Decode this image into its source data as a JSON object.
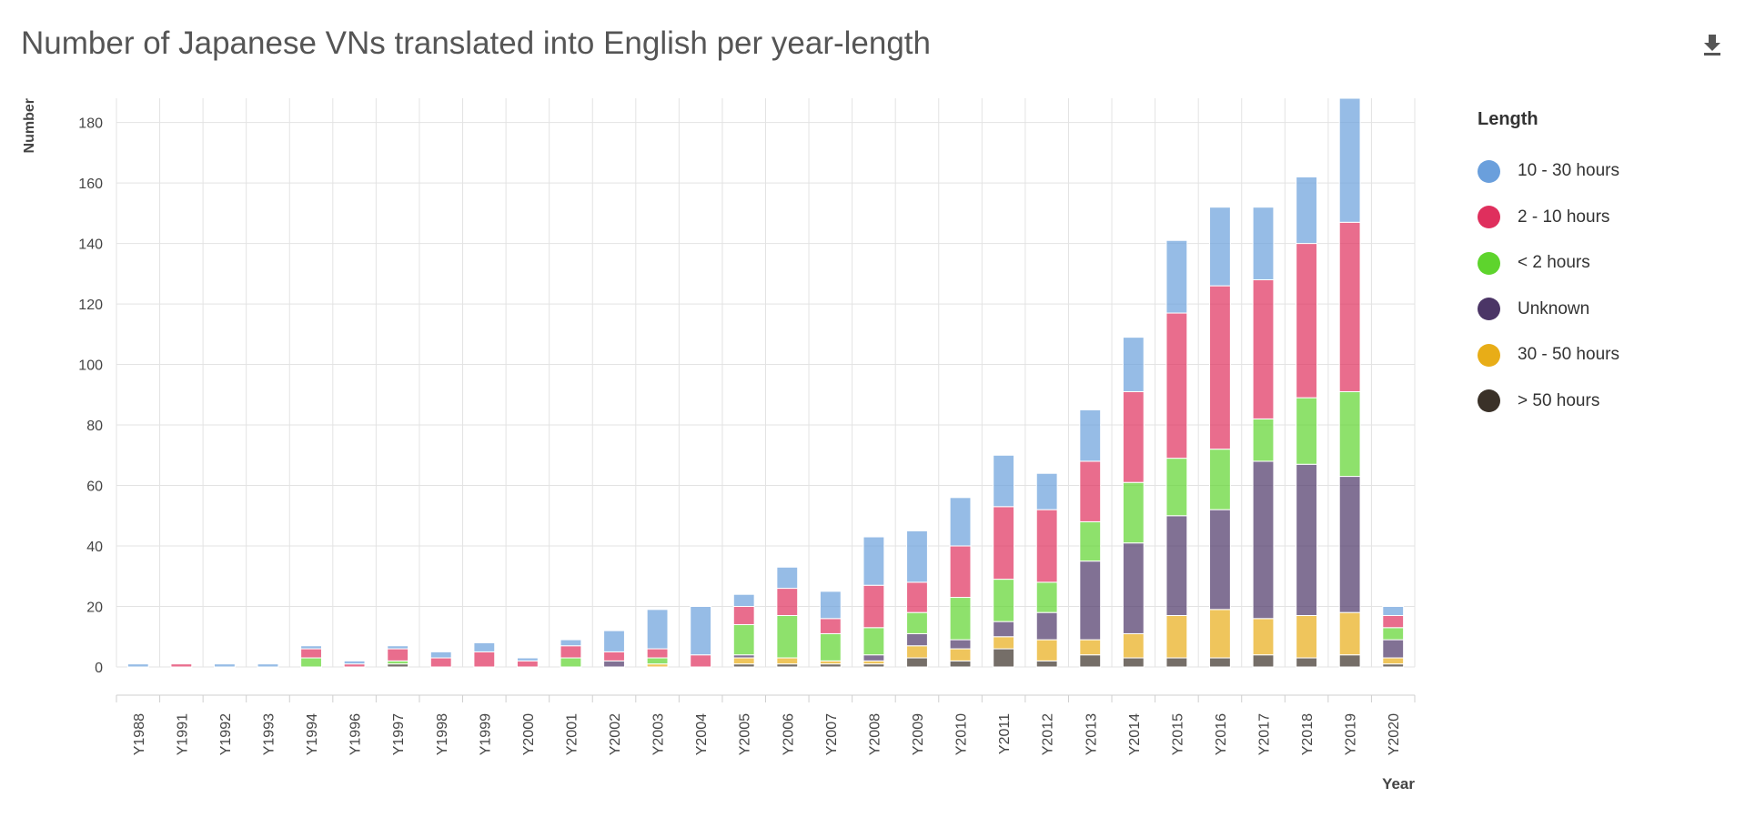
{
  "title": "Number of Japanese VNs translated into English per year-length",
  "download_icon": "download-icon",
  "legend": {
    "title": "Length",
    "items": [
      {
        "label": "10 - 30 hours",
        "color": "#6a9fdc"
      },
      {
        "label": "2 - 10 hours",
        "color": "#df2f5d"
      },
      {
        "label": "< 2 hours",
        "color": "#5ed42d"
      },
      {
        "label": "Unknown",
        "color": "#4b3566"
      },
      {
        "label": "30 - 50 hours",
        "color": "#e8ad17"
      },
      {
        "label": "> 50 hours",
        "color": "#3a3128"
      }
    ]
  },
  "chart_data": {
    "type": "bar",
    "stacked": true,
    "xlabel": "Year",
    "ylabel": "Number",
    "ylim": [
      0,
      188
    ],
    "yticks": [
      0,
      20,
      40,
      60,
      80,
      100,
      120,
      140,
      160,
      180
    ],
    "grid": true,
    "legend_position": "right",
    "categories": [
      "Y1988",
      "Y1991",
      "Y1992",
      "Y1993",
      "Y1994",
      "Y1996",
      "Y1997",
      "Y1998",
      "Y1999",
      "Y2000",
      "Y2001",
      "Y2002",
      "Y2003",
      "Y2004",
      "Y2005",
      "Y2006",
      "Y2007",
      "Y2008",
      "Y2009",
      "Y2010",
      "Y2011",
      "Y2012",
      "Y2013",
      "Y2014",
      "Y2015",
      "Y2016",
      "Y2017",
      "Y2018",
      "Y2019",
      "Y2020"
    ],
    "series": [
      {
        "name": "> 50 hours",
        "color": "#3a3128",
        "values": [
          0,
          0,
          0,
          0,
          0,
          0,
          1,
          0,
          0,
          0,
          0,
          0,
          0,
          0,
          1,
          1,
          1,
          1,
          3,
          2,
          6,
          2,
          4,
          3,
          3,
          3,
          4,
          3,
          4,
          1
        ]
      },
      {
        "name": "30 - 50 hours",
        "color": "#e8ad17",
        "values": [
          0,
          0,
          0,
          0,
          0,
          0,
          0,
          0,
          0,
          0,
          0,
          0,
          1,
          0,
          2,
          2,
          1,
          1,
          4,
          4,
          4,
          7,
          5,
          8,
          14,
          16,
          12,
          14,
          14,
          2
        ]
      },
      {
        "name": "Unknown",
        "color": "#4b3566",
        "values": [
          0,
          0,
          0,
          0,
          0,
          0,
          0,
          0,
          0,
          0,
          0,
          2,
          0,
          0,
          1,
          0,
          0,
          2,
          4,
          3,
          5,
          9,
          26,
          30,
          33,
          33,
          52,
          50,
          45,
          6
        ]
      },
      {
        "name": "< 2 hours",
        "color": "#5ed42d",
        "values": [
          0,
          0,
          0,
          0,
          3,
          0,
          1,
          0,
          0,
          0,
          3,
          0,
          2,
          0,
          10,
          14,
          9,
          9,
          7,
          14,
          14,
          10,
          13,
          20,
          19,
          20,
          14,
          22,
          28,
          4
        ]
      },
      {
        "name": "2 - 10 hours",
        "color": "#df2f5d",
        "values": [
          0,
          1,
          0,
          0,
          3,
          1,
          4,
          3,
          5,
          2,
          4,
          3,
          3,
          4,
          6,
          9,
          5,
          14,
          10,
          17,
          24,
          24,
          20,
          30,
          48,
          54,
          46,
          51,
          56,
          4
        ]
      },
      {
        "name": "10 - 30 hours",
        "color": "#6a9fdc",
        "values": [
          1,
          0,
          1,
          1,
          1,
          1,
          1,
          2,
          3,
          1,
          2,
          7,
          13,
          16,
          4,
          7,
          9,
          16,
          17,
          16,
          17,
          12,
          17,
          18,
          24,
          26,
          24,
          22,
          41,
          3
        ]
      }
    ]
  }
}
